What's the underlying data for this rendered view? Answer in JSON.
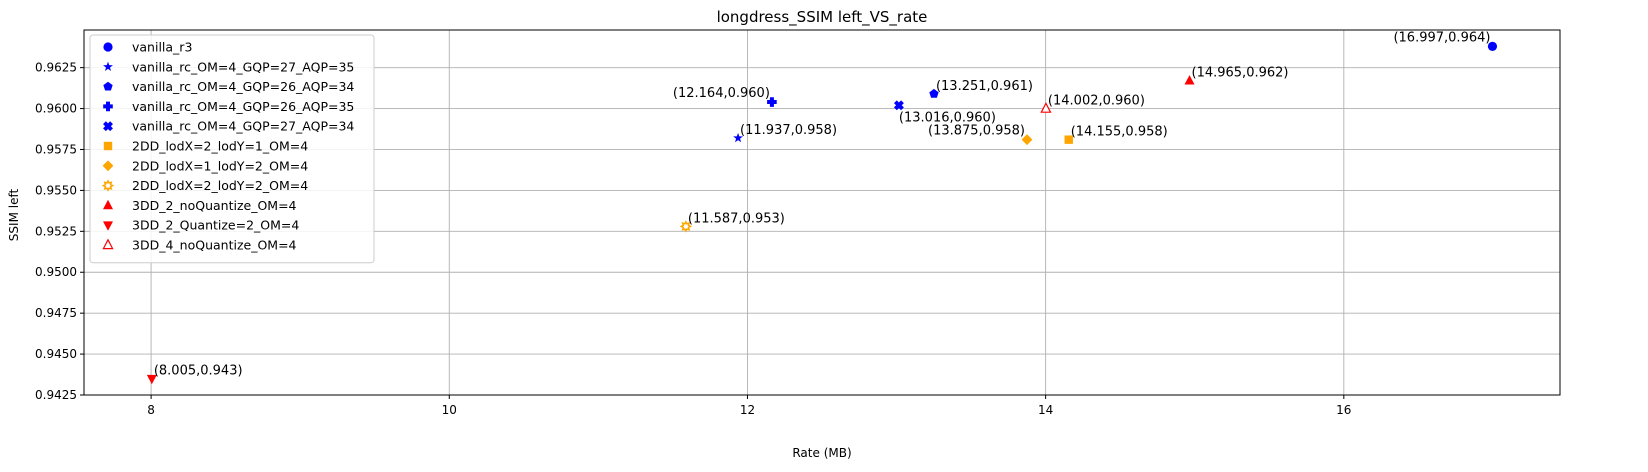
{
  "chart_data": {
    "type": "scatter",
    "title": "longdress_SSIM left_VS_rate",
    "xlabel": "Rate (MB)",
    "ylabel": "SSIM left",
    "xlim": [
      7.55,
      17.45
    ],
    "ylim": [
      0.9425,
      0.9648
    ],
    "xticks": [
      8,
      10,
      12,
      14,
      16
    ],
    "xtick_labels": [
      "8",
      "10",
      "12",
      "14",
      "16"
    ],
    "yticks": [
      0.9425,
      0.945,
      0.9475,
      0.95,
      0.9525,
      0.955,
      0.9575,
      0.96,
      0.9625
    ],
    "ytick_labels": [
      "0.9425",
      "0.9450",
      "0.9475",
      "0.9500",
      "0.9525",
      "0.9550",
      "0.9575",
      "0.9600",
      "0.9625"
    ],
    "grid": true,
    "legend_position": "upper-left",
    "series": [
      {
        "name": "vanilla_r3",
        "marker": "circle",
        "color": "#0000ff",
        "x": [
          16.997
        ],
        "y": [
          0.9638
        ],
        "labels": [
          "(16.997,0.964)"
        ]
      },
      {
        "name": "vanilla_rc_OM=4_GQP=27_AQP=35",
        "marker": "star",
        "color": "#0000ff",
        "x": [
          11.937
        ],
        "y": [
          0.9582
        ],
        "labels": [
          "(11.937,0.958)"
        ]
      },
      {
        "name": "vanilla_rc_OM=4_GQP=26_AQP=34",
        "marker": "pentagon",
        "color": "#0000ff",
        "x": [
          13.251
        ],
        "y": [
          0.9609
        ],
        "labels": [
          "(13.251,0.961)"
        ]
      },
      {
        "name": "vanilla_rc_OM=4_GQP=26_AQP=35",
        "marker": "plus",
        "color": "#0000ff",
        "x": [
          12.164
        ],
        "y": [
          0.9604
        ],
        "labels": [
          "(12.164,0.960)"
        ]
      },
      {
        "name": "vanilla_rc_OM=4_GQP=27_AQP=34",
        "marker": "x",
        "color": "#0000ff",
        "x": [
          13.016
        ],
        "y": [
          0.9602
        ],
        "labels": [
          "(13.016,0.960)"
        ]
      },
      {
        "name": "2DD_lodX=2_lodY=1_OM=4",
        "marker": "square",
        "color": "#ffa500",
        "x": [
          14.155
        ],
        "y": [
          0.9581
        ],
        "labels": [
          "(14.155,0.958)"
        ]
      },
      {
        "name": "2DD_lodX=1_lodY=2_OM=4",
        "marker": "diamond",
        "color": "#ffa500",
        "x": [
          13.875
        ],
        "y": [
          0.9581
        ],
        "labels": [
          "(13.875,0.958)"
        ]
      },
      {
        "name": "2DD_lodX=2_lodY=2_OM=4",
        "marker": "gear",
        "color": "#ffa500",
        "x": [
          11.587
        ],
        "y": [
          0.9528
        ],
        "labels": [
          "(11.587,0.953)"
        ]
      },
      {
        "name": "3DD_2_noQuantize_OM=4",
        "marker": "triangle-up",
        "color": "#ff0000",
        "x": [
          14.965
        ],
        "y": [
          0.9617
        ],
        "labels": [
          "(14.965,0.962)"
        ]
      },
      {
        "name": "3DD_2_Quantize=2_OM=4",
        "marker": "triangle-down",
        "color": "#ff0000",
        "x": [
          8.005
        ],
        "y": [
          0.9435
        ],
        "labels": [
          "(8.005,0.943)"
        ]
      },
      {
        "name": "3DD_4_noQuantize_OM=4",
        "marker": "triangle-up-open",
        "color": "#ff0000",
        "x": [
          14.002
        ],
        "y": [
          0.96
        ],
        "labels": [
          "(14.002,0.960)"
        ]
      }
    ]
  }
}
